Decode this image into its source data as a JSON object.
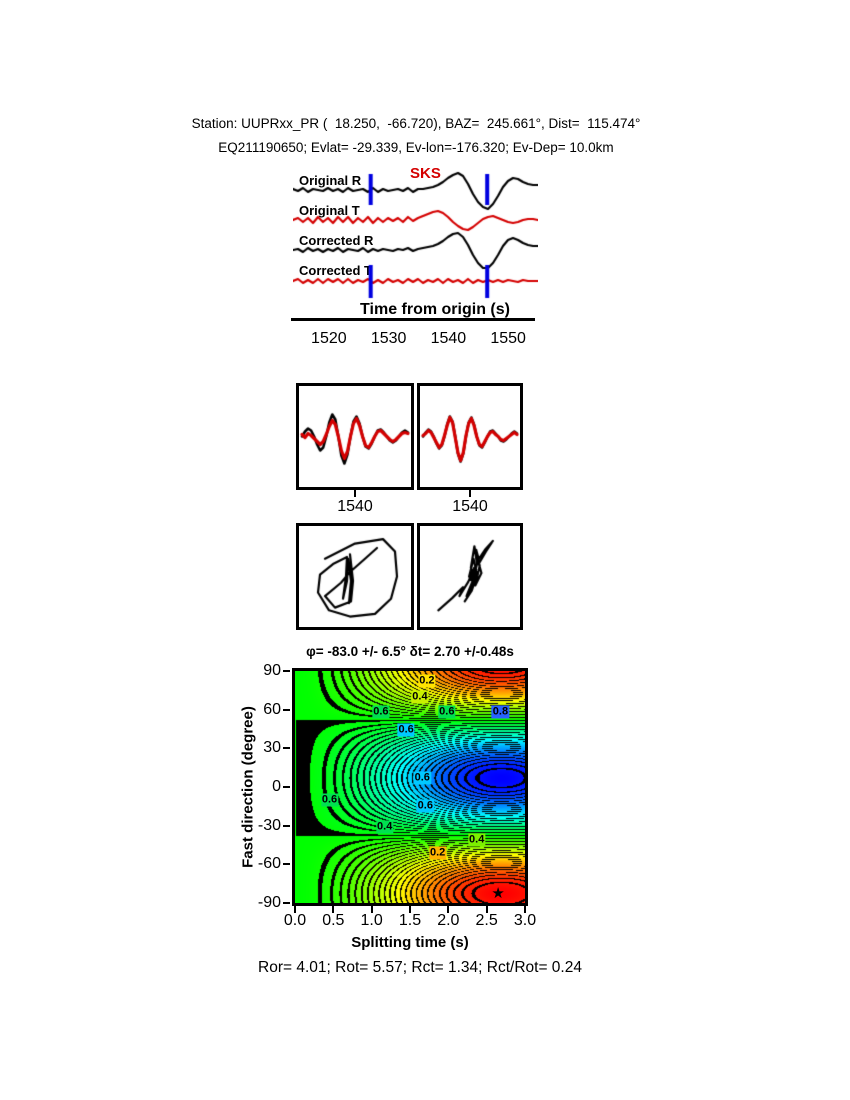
{
  "header": {
    "line1": "Station: UUPRxx_PR (  18.250,  -66.720), BAZ=  245.661°, Dist=  115.474°",
    "line2": "EQ211190650; Evlat= -29.339, Ev-lon=-176.320; Ev-Dep= 10.0km"
  },
  "footer": {
    "stats": "Ror= 4.01; Rot= 5.57; Rct= 1.34; Rct/Rot= 0.24"
  },
  "chart_data": [
    {
      "type": "line",
      "name": "original-and-corrected-waveforms",
      "phase_label": "SKS",
      "x_label": "Time from origin (s)",
      "x_range": [
        1514,
        1555
      ],
      "x_ticks": [
        "1520",
        "1530",
        "1540",
        "1550"
      ],
      "x_tick_values": [
        1520,
        1530,
        1540,
        1550
      ],
      "window_markers": [
        1527,
        1546.5
      ],
      "marker_color": "#0000e0",
      "series": [
        {
          "name": "Original R",
          "color": "#000000",
          "width": 2.2,
          "y": [
            1,
            -1,
            2,
            -2,
            1,
            0,
            -1,
            2,
            -1,
            1,
            -2,
            2,
            -1,
            0,
            1,
            -2,
            2,
            -2,
            1,
            -1,
            0,
            1,
            -1,
            2,
            -2,
            1,
            1,
            2,
            3,
            5,
            8,
            12,
            15,
            17,
            14,
            6,
            -4,
            -12,
            -17,
            -19,
            -14,
            -6,
            3,
            9,
            12,
            11,
            8,
            6,
            5,
            5
          ]
        },
        {
          "name": "Original T",
          "color": "#d40000",
          "width": 2.2,
          "y": [
            0,
            2,
            -2,
            2,
            -3,
            3,
            -2,
            2,
            -3,
            3,
            -2,
            3,
            -3,
            2,
            -2,
            3,
            -3,
            2,
            -2,
            2,
            -1,
            2,
            -2,
            3,
            -1,
            2,
            4,
            6,
            8,
            9,
            7,
            3,
            -2,
            -6,
            -9,
            -10,
            -7,
            -3,
            1,
            3,
            4,
            2,
            0,
            -2,
            -3,
            -2,
            0,
            1,
            1,
            0
          ]
        },
        {
          "name": "Corrected R",
          "color": "#000000",
          "width": 2.2,
          "y": [
            0,
            1,
            -2,
            2,
            -1,
            1,
            -2,
            1,
            -1,
            2,
            -2,
            1,
            0,
            -1,
            2,
            -2,
            1,
            -1,
            1,
            0,
            -1,
            1,
            0,
            2,
            -1,
            1,
            2,
            3,
            4,
            6,
            9,
            13,
            16,
            17,
            13,
            5,
            -5,
            -13,
            -18,
            -18,
            -13,
            -5,
            4,
            10,
            12,
            10,
            7,
            5,
            4,
            4
          ]
        },
        {
          "name": "Corrected T",
          "color": "#d40000",
          "width": 2.2,
          "y": [
            0,
            2,
            -2,
            1,
            -2,
            2,
            -2,
            2,
            -1,
            2,
            -2,
            2,
            -2,
            1,
            -1,
            2,
            -2,
            1,
            -2,
            2,
            -1,
            1,
            -2,
            2,
            -1,
            2,
            -2,
            1,
            -1,
            2,
            -2,
            2,
            -1,
            1,
            -2,
            2,
            -2,
            1,
            -1,
            1,
            -1,
            1,
            -1,
            1,
            0,
            -1,
            1,
            0,
            0,
            0
          ]
        }
      ]
    },
    {
      "type": "line",
      "name": "waveform-overlay-original",
      "x_tick_label": "1540",
      "series": [
        {
          "name": "radial",
          "color": "#000000",
          "width": 2.6,
          "y": [
            0,
            5,
            8,
            6,
            0,
            -8,
            -14,
            -11,
            0,
            14,
            22,
            17,
            0,
            -19,
            -27,
            -18,
            0,
            15,
            20,
            13,
            0,
            -10,
            -12,
            -7,
            0,
            6,
            7,
            4,
            0,
            -4,
            -6,
            -4,
            0,
            4,
            6,
            4
          ]
        },
        {
          "name": "transverse",
          "color": "#d40000",
          "width": 3.2,
          "y": [
            2,
            -1,
            3,
            1,
            -2,
            -5,
            -8,
            -5,
            2,
            10,
            16,
            12,
            0,
            -14,
            -22,
            -15,
            0,
            13,
            18,
            11,
            0,
            -9,
            -11,
            -6,
            0,
            5,
            6,
            3,
            0,
            -3,
            -5,
            -3,
            0,
            3,
            4,
            3
          ]
        }
      ]
    },
    {
      "type": "line",
      "name": "waveform-overlay-corrected",
      "x_tick_label": "1540",
      "series": [
        {
          "name": "radial",
          "color": "#000000",
          "width": 2.6,
          "y": [
            0,
            4,
            7,
            5,
            0,
            -7,
            -12,
            -9,
            0,
            12,
            20,
            15,
            0,
            -17,
            -25,
            -17,
            0,
            14,
            19,
            12,
            0,
            -9,
            -11,
            -6,
            0,
            5,
            6,
            3,
            0,
            -4,
            -5,
            -3,
            0,
            3,
            5,
            3
          ]
        },
        {
          "name": "transverse",
          "color": "#d40000",
          "width": 3.2,
          "y": [
            1,
            3,
            6,
            4,
            -1,
            -6,
            -11,
            -8,
            1,
            11,
            19,
            14,
            -1,
            -16,
            -24,
            -16,
            1,
            13,
            18,
            11,
            0,
            -8,
            -10,
            -5,
            0,
            4,
            5,
            2,
            0,
            -3,
            -4,
            -2,
            0,
            2,
            4,
            2
          ]
        }
      ]
    },
    {
      "type": "path",
      "name": "particle-motion",
      "paths": [
        {
          "name": "original",
          "points": [
            [
              0.2,
              0.3
            ],
            [
              0.5,
              0.13
            ],
            [
              0.78,
              0.08
            ],
            [
              0.9,
              0.22
            ],
            [
              0.92,
              0.5
            ],
            [
              0.86,
              0.75
            ],
            [
              0.7,
              0.92
            ],
            [
              0.45,
              0.95
            ],
            [
              0.24,
              0.88
            ],
            [
              0.13,
              0.68
            ],
            [
              0.15,
              0.48
            ],
            [
              0.28,
              0.36
            ],
            [
              0.42,
              0.28
            ],
            [
              0.41,
              0.5
            ],
            [
              0.38,
              0.75
            ],
            [
              0.42,
              0.55
            ],
            [
              0.43,
              0.3
            ],
            [
              0.46,
              0.55
            ],
            [
              0.44,
              0.8
            ],
            [
              0.47,
              0.5
            ],
            [
              0.45,
              0.25
            ],
            [
              0.48,
              0.55
            ],
            [
              0.46,
              0.78
            ],
            [
              0.3,
              0.85
            ],
            [
              0.2,
              0.72
            ],
            [
              0.36,
              0.57
            ],
            [
              0.45,
              0.45
            ],
            [
              0.6,
              0.3
            ],
            [
              0.72,
              0.18
            ]
          ]
        },
        {
          "name": "corrected",
          "points": [
            [
              0.14,
              0.88
            ],
            [
              0.3,
              0.74
            ],
            [
              0.42,
              0.62
            ],
            [
              0.38,
              0.72
            ],
            [
              0.48,
              0.56
            ],
            [
              0.55,
              0.4
            ],
            [
              0.5,
              0.54
            ],
            [
              0.57,
              0.42
            ],
            [
              0.53,
              0.6
            ],
            [
              0.46,
              0.72
            ],
            [
              0.53,
              0.55
            ],
            [
              0.58,
              0.36
            ],
            [
              0.55,
              0.16
            ],
            [
              0.51,
              0.4
            ],
            [
              0.57,
              0.56
            ],
            [
              0.61,
              0.38
            ],
            [
              0.57,
              0.2
            ],
            [
              0.61,
              0.34
            ],
            [
              0.68,
              0.22
            ],
            [
              0.76,
              0.1
            ],
            [
              0.67,
              0.2
            ],
            [
              0.59,
              0.32
            ],
            [
              0.63,
              0.46
            ],
            [
              0.56,
              0.6
            ],
            [
              0.49,
              0.5
            ],
            [
              0.54,
              0.3
            ],
            [
              0.58,
              0.48
            ],
            [
              0.52,
              0.66
            ],
            [
              0.44,
              0.78
            ]
          ]
        }
      ]
    },
    {
      "type": "heatmap",
      "name": "splitting-misfit-contour",
      "title": "φ= -83.0 +/- 6.5° δt= 2.70 +/-0.48s",
      "xlabel": "Splitting time (s)",
      "ylabel": "Fast direction (degree)",
      "x_range": [
        0,
        3
      ],
      "y_range": [
        -90,
        90
      ],
      "x_ticks": [
        "0.0",
        "0.5",
        "1.0",
        "1.5",
        "2.0",
        "2.5",
        "3.0"
      ],
      "x_tick_values": [
        0,
        0.5,
        1,
        1.5,
        2,
        2.5,
        3
      ],
      "y_ticks": [
        "90",
        "60",
        "30",
        "0",
        "-30",
        "-60",
        "-90"
      ],
      "y_tick_values": [
        90,
        60,
        30,
        0,
        -30,
        -60,
        -90
      ],
      "best_fit": {
        "phi_deg": -83.0,
        "phi_err_deg": 6.5,
        "dt_s": 2.7,
        "dt_err_s": 0.48
      },
      "contour_step": 0.02,
      "contour_levels_labeled": [
        0.2,
        0.4,
        0.6,
        0.8
      ],
      "star": {
        "dt": 2.65,
        "phi": -82
      },
      "contour_labels": [
        {
          "text": "0.2",
          "bg": "#ffe400",
          "dt": 1.72,
          "phi": 82
        },
        {
          "text": "0.4",
          "bg": "#c8f000",
          "dt": 1.63,
          "phi": 70
        },
        {
          "text": "0.6",
          "bg": "#00e050",
          "dt": 1.12,
          "phi": 58
        },
        {
          "text": "0.6",
          "bg": "#00e050",
          "dt": 1.98,
          "phi": 58
        },
        {
          "text": "0.8",
          "bg": "#2862ff",
          "dt": 2.68,
          "phi": 58
        },
        {
          "text": "0.6",
          "bg": "#00c8ff",
          "dt": 1.45,
          "phi": 44
        },
        {
          "text": "0.6",
          "bg": "#00c8ff",
          "dt": 1.66,
          "phi": 7
        },
        {
          "text": "0.6",
          "bg": "#00e050",
          "dt": 0.45,
          "phi": -10
        },
        {
          "text": "0.6",
          "bg": "#00c8ff",
          "dt": 1.7,
          "phi": -15
        },
        {
          "text": "0.4",
          "bg": "#00e050",
          "dt": 1.17,
          "phi": -31
        },
        {
          "text": "0.4",
          "bg": "#7cf000",
          "dt": 2.37,
          "phi": -41
        },
        {
          "text": "0.2",
          "bg": "#ffb400",
          "dt": 1.86,
          "phi": -51
        }
      ]
    }
  ]
}
